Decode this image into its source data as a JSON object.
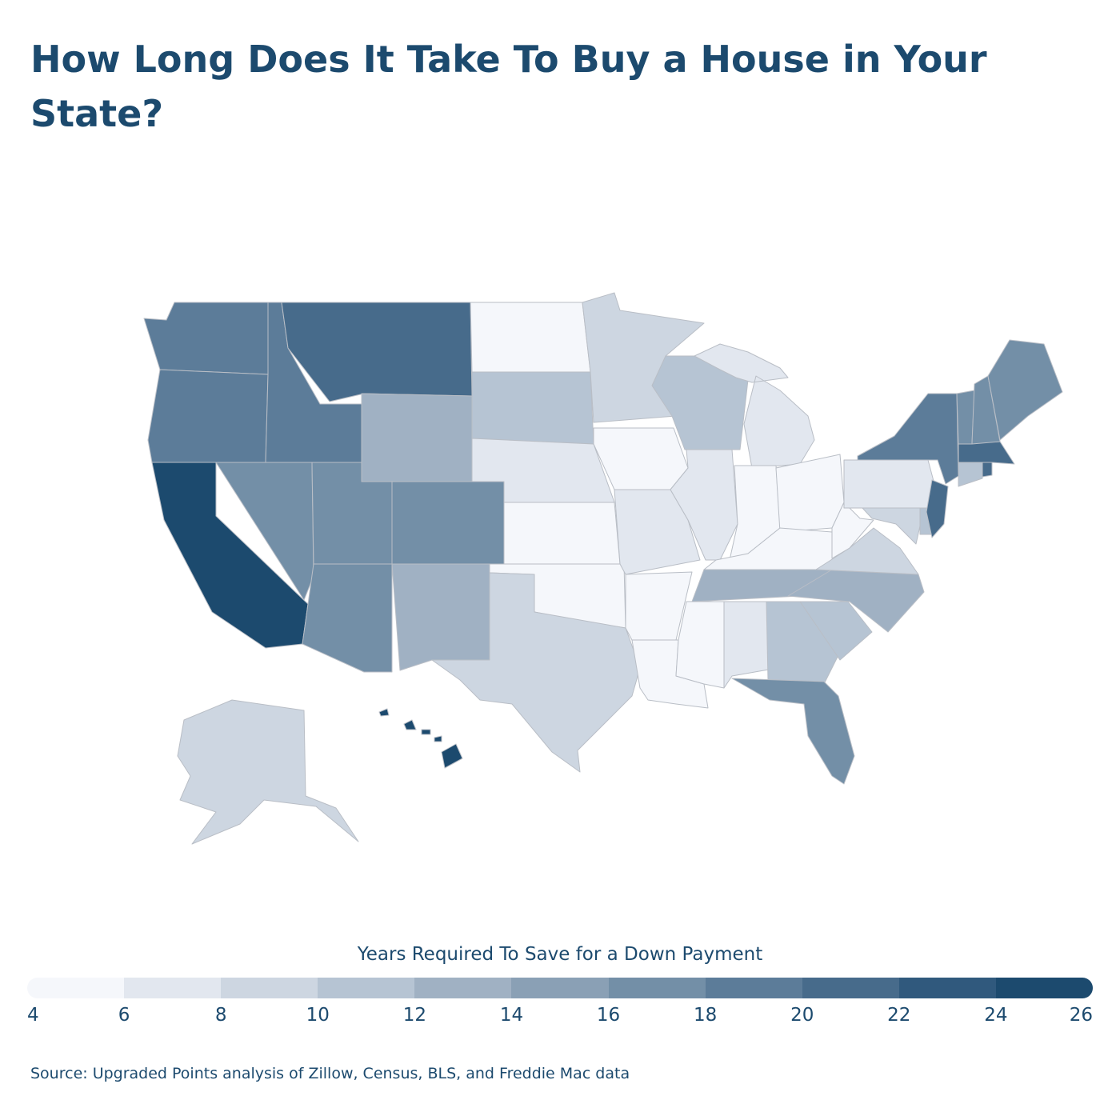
{
  "title": "How Long Does It Take To Buy a House in Your State?",
  "legend": {
    "title": "Years Required To Save for a Down Payment",
    "ticks": [
      "4",
      "6",
      "8",
      "10",
      "12",
      "14",
      "16",
      "18",
      "20",
      "22",
      "24",
      "26"
    ],
    "colors": [
      "#f5f7fb",
      "#e2e7ef",
      "#cdd6e1",
      "#b6c4d3",
      "#a0b1c3",
      "#8aa0b5",
      "#738fa7",
      "#5c7c99",
      "#476b8b",
      "#30597d",
      "#1c4a6e"
    ]
  },
  "source": "Source: Upgraded Points analysis of Zillow, Census, BLS, and Freddie Mac data",
  "map_data": {
    "CA": 24.5,
    "HI": 24.5,
    "MA": 21.5,
    "NJ": 20.5,
    "RI": 20.5,
    "MT": 20.5,
    "WA": 19.0,
    "OR": 19.0,
    "ID": 19.0,
    "NY": 19.0,
    "NV": 17.0,
    "UT": 17.0,
    "CO": 17.0,
    "AZ": 17.0,
    "VT": 17.0,
    "NH": 17.0,
    "ME": 17.0,
    "FL": 17.0,
    "WY": 13.0,
    "NM": 13.0,
    "TN": 13.0,
    "NC": 13.0,
    "SD": 11.0,
    "WI": 11.0,
    "GA": 11.0,
    "SC": 11.0,
    "CT": 11.0,
    "DE": 11.0,
    "MN": 9.0,
    "TX": 9.0,
    "AK": 9.0,
    "VA": 9.0,
    "MD": 9.0,
    "NE": 7.0,
    "MO": 7.0,
    "IL": 7.0,
    "MI": 7.0,
    "PA": 7.0,
    "AL": 7.0,
    "ND": 5.0,
    "KS": 5.0,
    "OK": 5.0,
    "IA": 5.0,
    "AR": 5.0,
    "LA": 5.0,
    "MS": 5.0,
    "IN": 5.0,
    "OH": 5.0,
    "KY": 5.0,
    "WV": 5.0
  }
}
